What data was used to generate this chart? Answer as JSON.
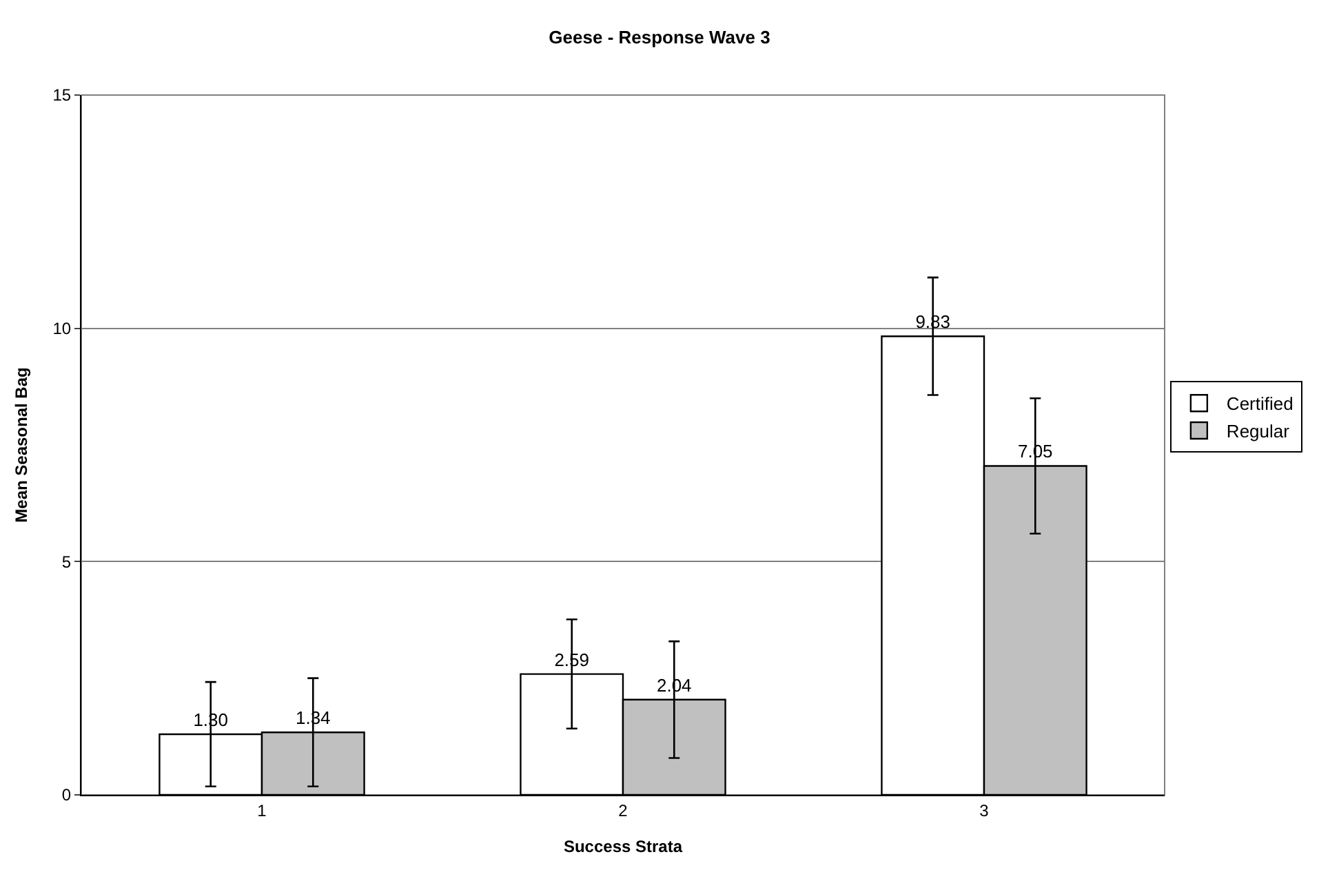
{
  "chart_data": {
    "type": "bar",
    "title": "Geese - Response Wave 3",
    "xlabel": "Success Strata",
    "ylabel": "Mean Seasonal Bag",
    "categories": [
      "1",
      "2",
      "3"
    ],
    "series": [
      {
        "name": "Certified",
        "color": "#ffffff",
        "values": [
          1.3,
          2.59,
          9.83
        ],
        "errors": [
          1.12,
          1.17,
          1.26
        ],
        "value_labels": [
          "1.30",
          "2.59",
          "9.83"
        ]
      },
      {
        "name": "Regular",
        "color": "#c0c0c0",
        "values": [
          1.34,
          2.04,
          7.05
        ],
        "errors": [
          1.16,
          1.25,
          1.45
        ],
        "value_labels": [
          "1.34",
          "2.04",
          "7.05"
        ]
      }
    ],
    "ylim": [
      0,
      15
    ],
    "yticks": [
      0,
      5,
      10,
      15
    ],
    "grid": "y",
    "legend": "right"
  }
}
